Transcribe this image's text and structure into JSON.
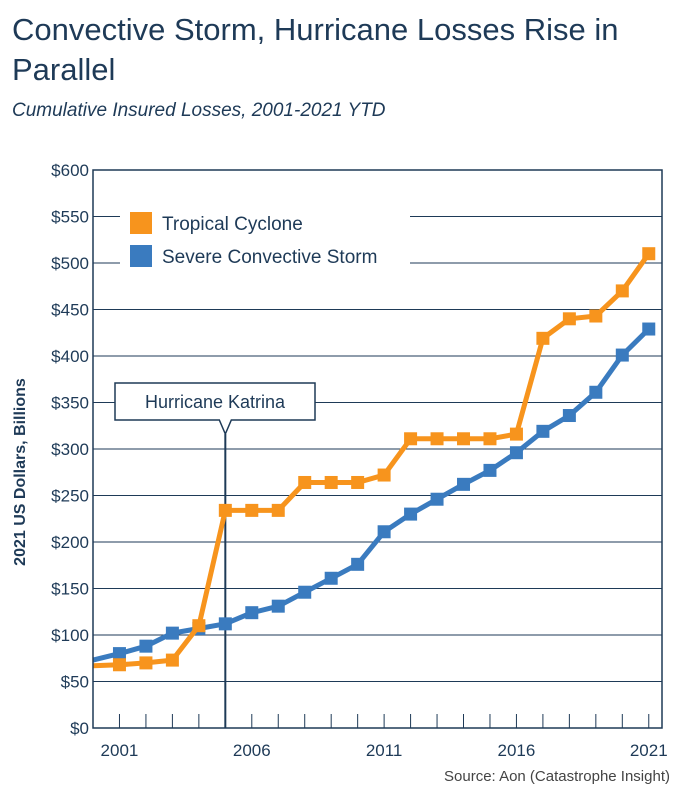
{
  "header": {
    "title": "Convective Storm, Hurricane Losses Rise in Parallel",
    "subtitle": "Cumulative Insured Losses, 2001-2021 YTD"
  },
  "source": "Source: Aon (Catastrophe Insight)",
  "colors": {
    "tropical_cyclone": "#f7941d",
    "severe_convective_storm": "#3a7bbf",
    "axis": "#1e3a57",
    "grid": "#1e3a57"
  },
  "chart_data": {
    "type": "line",
    "ylabel": "2021 US Dollars, Billions",
    "ylim": [
      0,
      600
    ],
    "xlim": [
      2000,
      2021.5
    ],
    "grid": true,
    "legend_placement": "top-left",
    "x_tick_labels": [
      "2001",
      "2006",
      "2011",
      "2016",
      "2021"
    ],
    "x_tick_values": [
      2001,
      2006,
      2011,
      2016,
      2021
    ],
    "y_tick_labels": [
      "$0",
      "$50",
      "$100",
      "$150",
      "$200",
      "$250",
      "$300",
      "$350",
      "$400",
      "$450",
      "$500",
      "$550",
      "$600"
    ],
    "y_tick_values": [
      0,
      50,
      100,
      150,
      200,
      250,
      300,
      350,
      400,
      450,
      500,
      550,
      600
    ],
    "x": [
      2001,
      2002,
      2003,
      2004,
      2005,
      2006,
      2007,
      2008,
      2009,
      2010,
      2011,
      2012,
      2013,
      2014,
      2015,
      2016,
      2017,
      2018,
      2019,
      2020,
      2021
    ],
    "series": [
      {
        "name": "Tropical Cyclone",
        "color": "#f7941d",
        "start": [
          2000,
          67
        ],
        "values": [
          68,
          70,
          73,
          110,
          234,
          234,
          234,
          264,
          264,
          264,
          272,
          311,
          311,
          311,
          311,
          316,
          419,
          440,
          443,
          470,
          510
        ]
      },
      {
        "name": "Severe Convective Storm",
        "color": "#3a7bbf",
        "start": [
          2000,
          73
        ],
        "values": [
          80,
          88,
          102,
          107,
          112,
          124,
          131,
          146,
          161,
          176,
          211,
          230,
          246,
          262,
          277,
          296,
          319,
          336,
          361,
          401,
          429
        ]
      }
    ],
    "annotation": {
      "label": "Hurricane Katrina",
      "x": 2005,
      "y": 350
    }
  }
}
